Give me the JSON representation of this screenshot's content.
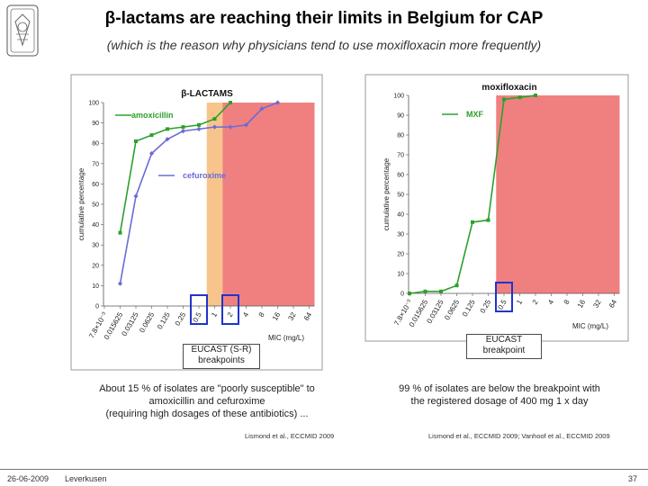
{
  "header": {
    "title": "β-lactams are reaching their limits in Belgium for CAP",
    "subtitle": "(which is the reason why physicians tend to use moxifloxacin more frequently)"
  },
  "callouts": {
    "left": [
      "EUCAST (S-R)",
      "breakpoints"
    ],
    "right": [
      "EUCAST",
      "breakpoint"
    ]
  },
  "notes": {
    "left": [
      "About 15 % of isolates are \"poorly susceptible\" to",
      "amoxicillin and cefuroxime",
      "(requiring high dosages of these antibiotics) ..."
    ],
    "right": [
      "99 % of isolates are below the breakpoint with",
      "the registered dosage of 400 mg 1 x day"
    ]
  },
  "citations": {
    "left": "Lismond et al., ECCMID 2009",
    "right": "Lismond et al., ECCMID 2009; Vanhoof et al., ECCMID 2009"
  },
  "footer": {
    "date": "26-06-2009",
    "place": "Leverkusen",
    "page": "37"
  },
  "colors": {
    "amoxicillin": "#2ca02c",
    "cefuroxime": "#6b6bd8",
    "mxf": "#2ca02c",
    "intermediate_zone": "#f7c58c",
    "resistant_zone": "#f08080",
    "breakpoint_box": "#2233cc"
  },
  "chart_data": [
    {
      "type": "line",
      "title": "β-LACTAMS",
      "ylabel": "cumulative percentage",
      "xlabel": "MIC (mg/L)",
      "ylim": [
        0,
        100
      ],
      "y_ticks": [
        "0",
        "10",
        "20",
        "30",
        "40",
        "50",
        "60",
        "70",
        "80",
        "90",
        "100"
      ],
      "categories": [
        "7.8×10⁻³",
        "0.015625",
        "0.03125",
        "0.0625",
        "0.125",
        "0.25",
        "0.5",
        "1",
        "2",
        "4",
        "8",
        "16",
        "32",
        "64"
      ],
      "intermediate_range": [
        "1",
        "2"
      ],
      "resistant_from": "2",
      "breakpoints_boxed": [
        "0.5",
        "2"
      ],
      "series": [
        {
          "name": "amoxicillin",
          "values": [
            null,
            36,
            81,
            84,
            87,
            88,
            89,
            92,
            100,
            null,
            null,
            null,
            null,
            null
          ]
        },
        {
          "name": "cefuroxime",
          "values": [
            null,
            11,
            54,
            75,
            82,
            86,
            87,
            88,
            88,
            89,
            97,
            100,
            null,
            null
          ]
        }
      ]
    },
    {
      "type": "line",
      "title": "moxifloxacin",
      "ylabel": "cumulative percentage",
      "xlabel": "MIC (mg/L)",
      "ylim": [
        0,
        100
      ],
      "y_ticks": [
        "0",
        "10",
        "20",
        "30",
        "40",
        "50",
        "60",
        "70",
        "80",
        "90",
        "100"
      ],
      "categories": [
        "7.8×10⁻³",
        "0.015625",
        "0.03125",
        "0.0625",
        "0.125",
        "0.25",
        "0.5",
        "1",
        "2",
        "4",
        "8",
        "16",
        "32",
        "64"
      ],
      "resistant_from": "0.5",
      "breakpoints_boxed": [
        "0.5"
      ],
      "series": [
        {
          "name": "MXF",
          "values": [
            0,
            1,
            1,
            4,
            36,
            37,
            98,
            99,
            100,
            null,
            null,
            null,
            null,
            null
          ]
        }
      ]
    }
  ]
}
